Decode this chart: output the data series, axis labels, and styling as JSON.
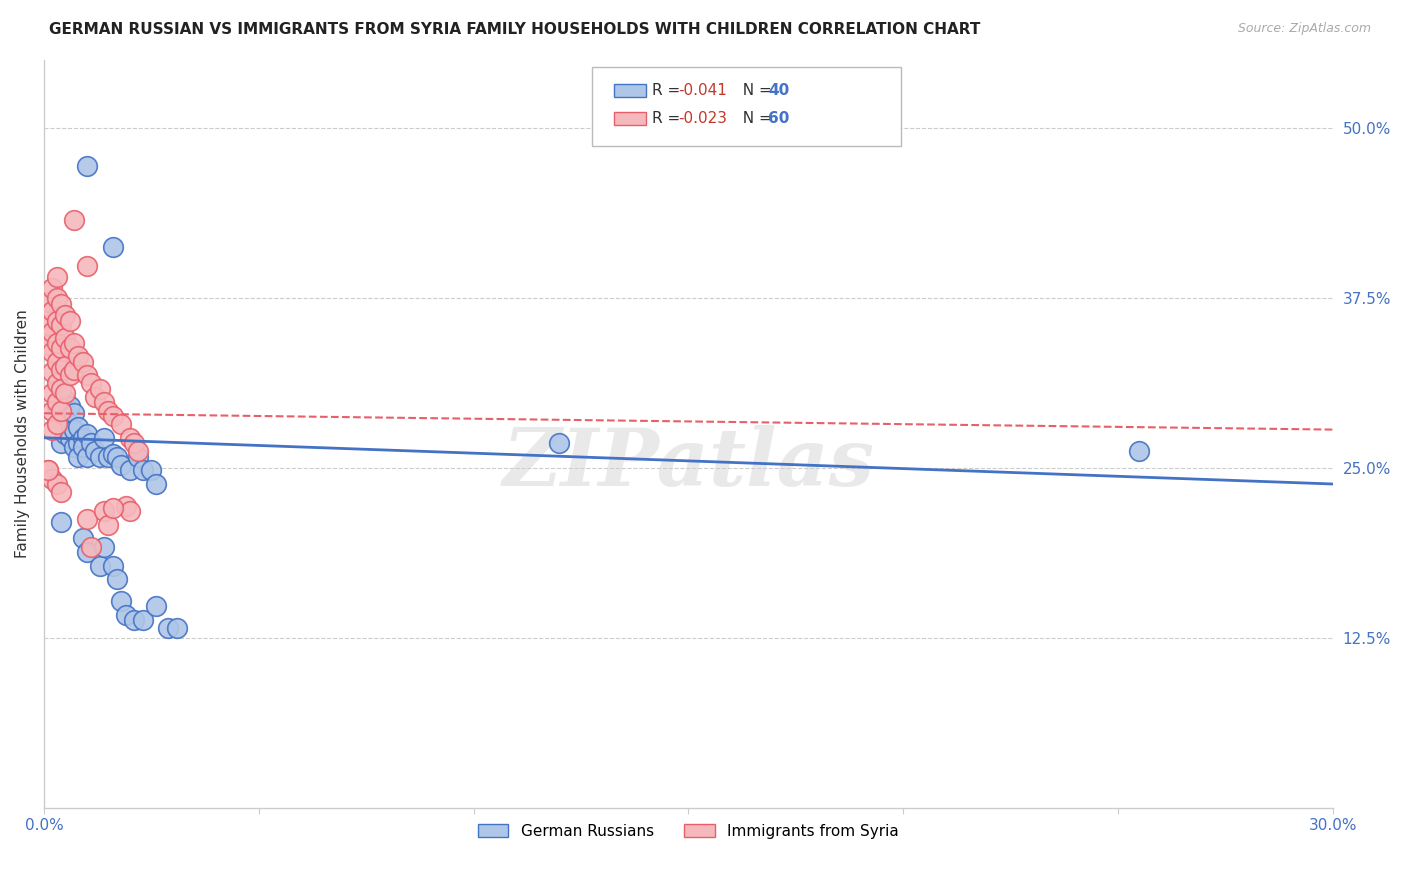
{
  "title": "GERMAN RUSSIAN VS IMMIGRANTS FROM SYRIA FAMILY HOUSEHOLDS WITH CHILDREN CORRELATION CHART",
  "source": "Source: ZipAtlas.com",
  "ylabel": "Family Households with Children",
  "x_min": 0.0,
  "x_max": 0.3,
  "y_min": 0.0,
  "y_max": 0.55,
  "x_ticks": [
    0.0,
    0.05,
    0.1,
    0.15,
    0.2,
    0.25,
    0.3
  ],
  "y_tick_labels_right": [
    "50.0%",
    "37.5%",
    "25.0%",
    "12.5%"
  ],
  "y_tick_values_right": [
    0.5,
    0.375,
    0.25,
    0.125
  ],
  "watermark": "ZIPatlas",
  "blue_color": "#4472c4",
  "pink_color": "#e85f6a",
  "blue_fill": "#aec6e8",
  "pink_fill": "#f5b8bd",
  "scatter_blue": [
    [
      0.003,
      0.295
    ],
    [
      0.004,
      0.285
    ],
    [
      0.004,
      0.268
    ],
    [
      0.005,
      0.3
    ],
    [
      0.005,
      0.285
    ],
    [
      0.005,
      0.275
    ],
    [
      0.006,
      0.295
    ],
    [
      0.006,
      0.282
    ],
    [
      0.006,
      0.272
    ],
    [
      0.007,
      0.265
    ],
    [
      0.007,
      0.29
    ],
    [
      0.007,
      0.278
    ],
    [
      0.008,
      0.268
    ],
    [
      0.008,
      0.258
    ],
    [
      0.008,
      0.28
    ],
    [
      0.009,
      0.272
    ],
    [
      0.009,
      0.265
    ],
    [
      0.01,
      0.275
    ],
    [
      0.01,
      0.258
    ],
    [
      0.011,
      0.268
    ],
    [
      0.012,
      0.262
    ],
    [
      0.013,
      0.258
    ],
    [
      0.014,
      0.272
    ],
    [
      0.015,
      0.258
    ],
    [
      0.016,
      0.26
    ],
    [
      0.017,
      0.258
    ],
    [
      0.018,
      0.252
    ],
    [
      0.02,
      0.248
    ],
    [
      0.022,
      0.258
    ],
    [
      0.023,
      0.248
    ],
    [
      0.025,
      0.248
    ],
    [
      0.026,
      0.238
    ],
    [
      0.004,
      0.21
    ],
    [
      0.009,
      0.198
    ],
    [
      0.01,
      0.188
    ],
    [
      0.013,
      0.178
    ],
    [
      0.014,
      0.192
    ],
    [
      0.016,
      0.178
    ],
    [
      0.017,
      0.168
    ],
    [
      0.018,
      0.152
    ],
    [
      0.019,
      0.142
    ],
    [
      0.021,
      0.138
    ],
    [
      0.023,
      0.138
    ],
    [
      0.026,
      0.148
    ],
    [
      0.029,
      0.132
    ],
    [
      0.031,
      0.132
    ],
    [
      0.01,
      0.472
    ],
    [
      0.016,
      0.412
    ],
    [
      0.12,
      0.268
    ],
    [
      0.255,
      0.262
    ]
  ],
  "scatter_pink": [
    [
      0.001,
      0.372
    ],
    [
      0.001,
      0.355
    ],
    [
      0.001,
      0.34
    ],
    [
      0.002,
      0.382
    ],
    [
      0.002,
      0.365
    ],
    [
      0.002,
      0.35
    ],
    [
      0.002,
      0.335
    ],
    [
      0.002,
      0.32
    ],
    [
      0.002,
      0.305
    ],
    [
      0.002,
      0.292
    ],
    [
      0.002,
      0.278
    ],
    [
      0.003,
      0.39
    ],
    [
      0.003,
      0.375
    ],
    [
      0.003,
      0.358
    ],
    [
      0.003,
      0.342
    ],
    [
      0.003,
      0.328
    ],
    [
      0.003,
      0.312
    ],
    [
      0.003,
      0.298
    ],
    [
      0.003,
      0.282
    ],
    [
      0.004,
      0.37
    ],
    [
      0.004,
      0.355
    ],
    [
      0.004,
      0.338
    ],
    [
      0.004,
      0.322
    ],
    [
      0.004,
      0.308
    ],
    [
      0.004,
      0.292
    ],
    [
      0.005,
      0.362
    ],
    [
      0.005,
      0.345
    ],
    [
      0.005,
      0.325
    ],
    [
      0.005,
      0.305
    ],
    [
      0.006,
      0.358
    ],
    [
      0.006,
      0.338
    ],
    [
      0.006,
      0.318
    ],
    [
      0.007,
      0.342
    ],
    [
      0.007,
      0.322
    ],
    [
      0.008,
      0.332
    ],
    [
      0.009,
      0.328
    ],
    [
      0.01,
      0.318
    ],
    [
      0.011,
      0.312
    ],
    [
      0.012,
      0.302
    ],
    [
      0.013,
      0.308
    ],
    [
      0.014,
      0.298
    ],
    [
      0.015,
      0.292
    ],
    [
      0.016,
      0.288
    ],
    [
      0.018,
      0.282
    ],
    [
      0.02,
      0.272
    ],
    [
      0.021,
      0.268
    ],
    [
      0.022,
      0.262
    ],
    [
      0.001,
      0.248
    ],
    [
      0.002,
      0.242
    ],
    [
      0.003,
      0.238
    ],
    [
      0.004,
      0.232
    ],
    [
      0.01,
      0.212
    ],
    [
      0.011,
      0.192
    ],
    [
      0.014,
      0.218
    ],
    [
      0.015,
      0.208
    ],
    [
      0.007,
      0.432
    ],
    [
      0.01,
      0.398
    ],
    [
      0.019,
      0.222
    ],
    [
      0.02,
      0.218
    ],
    [
      0.001,
      0.248
    ],
    [
      0.016,
      0.22
    ]
  ],
  "blue_line_x": [
    0.0,
    0.3
  ],
  "blue_line_y": [
    0.272,
    0.238
  ],
  "pink_line_x": [
    0.0,
    0.3
  ],
  "pink_line_y": [
    0.29,
    0.278
  ],
  "legend_labels_bottom": [
    "German Russians",
    "Immigrants from Syria"
  ],
  "grid_color": "#cccccc",
  "background_color": "#ffffff",
  "axis_color": "#cccccc",
  "tick_color": "#4472c4"
}
